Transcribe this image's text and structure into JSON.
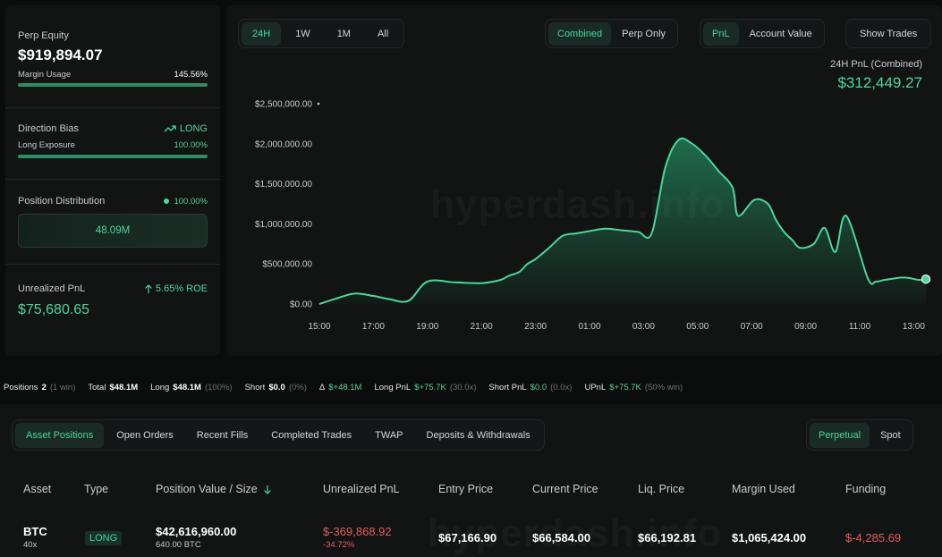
{
  "left": {
    "perp_equity_label": "Perp Equity",
    "perp_equity_value": "$919,894.07",
    "margin_usage_label": "Margin Usage",
    "margin_usage_value": "145.56%",
    "direction_bias_label": "Direction Bias",
    "direction_bias_value": "LONG",
    "long_exposure_label": "Long Exposure",
    "long_exposure_value": "100.00%",
    "position_distribution_label": "Position Distribution",
    "position_distribution_value": "100.00%",
    "distribution_bar_value": "48.09M",
    "upnl_label": "Unrealized PnL",
    "upnl_roe": "5.65% ROE",
    "upnl_value": "$75,680.65"
  },
  "chart_header": {
    "time_tabs": [
      "24H",
      "1W",
      "1M",
      "All"
    ],
    "mode_tabs": [
      "Combined",
      "Perp Only"
    ],
    "metric_tabs": [
      "PnL",
      "Account Value"
    ],
    "show_trades": "Show Trades",
    "pnl_label": "24H PnL (Combined)",
    "pnl_value": "$312,449.27"
  },
  "watermark": "hyperdash.info",
  "chart_data": {
    "type": "area",
    "y_ticks": [
      "$0.00",
      "$500,000.00",
      "$1,000,000.00",
      "$1,500,000.00",
      "$2,000,000.00",
      "$2,500,000.00"
    ],
    "x_ticks": [
      "15:00",
      "17:00",
      "19:00",
      "21:00",
      "23:00",
      "01:00",
      "03:00",
      "05:00",
      "07:00",
      "09:00",
      "11:00",
      "13:00"
    ],
    "ylim": [
      0,
      2500000
    ],
    "x": [
      0,
      0.65,
      1.3,
      2.0,
      2.6,
      3.3,
      4.0,
      5.0,
      6.0,
      6.7,
      7.0,
      7.4,
      7.7,
      8.0,
      8.5,
      9.0,
      9.5,
      10.0,
      10.6,
      11.2,
      11.8,
      12.3,
      12.8,
      13.3,
      13.8,
      14.3,
      14.8,
      15.3,
      15.5,
      16.1,
      16.6,
      16.9,
      17.2,
      17.5,
      17.8,
      18.3,
      18.7,
      19.1,
      19.5,
      20.3,
      20.6,
      20.9,
      21.3,
      21.6,
      21.9,
      22.2,
      22.45
    ],
    "y": [
      0,
      70000,
      130000,
      100000,
      60000,
      40000,
      280000,
      270000,
      260000,
      300000,
      350000,
      400000,
      500000,
      560000,
      700000,
      850000,
      880000,
      910000,
      940000,
      920000,
      900000,
      880000,
      1700000,
      2050000,
      2000000,
      1850000,
      1650000,
      1450000,
      1100000,
      1300000,
      1250000,
      1050000,
      900000,
      800000,
      700000,
      750000,
      950000,
      650000,
      1100000,
      320000,
      280000,
      300000,
      320000,
      330000,
      320000,
      300000,
      310000
    ],
    "xlim": [
      0,
      22.45
    ],
    "grid": false,
    "color": "#4cd69a"
  },
  "stats": {
    "positions_label": "Positions",
    "positions_value": "2",
    "positions_sub": "(1 win)",
    "total_label": "Total",
    "total_value": "$48.1M",
    "long_label": "Long",
    "long_value": "$48.1M",
    "long_sub": "(100%)",
    "short_label": "Short",
    "short_value": "$0.0",
    "short_sub": "(0%)",
    "delta_label": "Δ",
    "delta_value": "$+48.1M",
    "longpnl_label": "Long PnL",
    "longpnl_value": "$+75.7K",
    "longpnl_sub": "(30.0x)",
    "shortpnl_label": "Short PnL",
    "shortpnl_value": "$0.0",
    "shortpnl_sub": "(0.0x)",
    "upnl_label": "UPnL",
    "upnl_value": "$+75.7K",
    "upnl_sub": "(50% win)"
  },
  "table": {
    "tabs": [
      "Asset Positions",
      "Open Orders",
      "Recent Fills",
      "Completed Trades",
      "TWAP",
      "Deposits & Withdrawals"
    ],
    "market_tabs": [
      "Perpetual",
      "Spot"
    ],
    "headers": [
      "Asset",
      "Type",
      "Position Value / Size",
      "Unrealized PnL",
      "Entry Price",
      "Current Price",
      "Liq. Price",
      "Margin Used",
      "Funding"
    ],
    "row": {
      "asset": "BTC",
      "leverage": "40x",
      "type": "LONG",
      "value": "$42,616,960.00",
      "size": "640.00 BTC",
      "upnl": "$-369,868.92",
      "upnl_pct": "-34.72%",
      "entry": "$67,166.90",
      "current": "$66,584.00",
      "liq": "$66,192.81",
      "margin": "$1,065,424.00",
      "funding": "$-4,285.69"
    }
  }
}
